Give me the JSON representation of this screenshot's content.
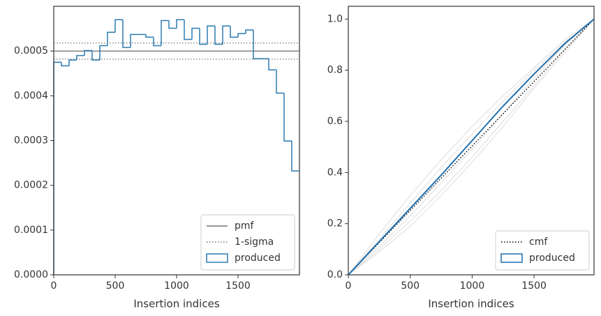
{
  "chart_data": [
    {
      "type": "histogram",
      "xlabel": "Insertion indices",
      "bins": [
        0,
        62.5,
        125,
        187.5,
        250,
        312.5,
        375,
        437.5,
        500,
        562.5,
        625,
        687.5,
        750,
        812.5,
        875,
        937.5,
        1000,
        1062.5,
        1125,
        1187.5,
        1250,
        1312.5,
        1375,
        1437.5,
        1500,
        1562.5,
        1625,
        1687.5,
        1750,
        1812.5,
        1875,
        1937.5,
        2000
      ],
      "series": [
        {
          "name": "produced",
          "color": "#2b7bb0",
          "legend_handle": "patch",
          "values": [
            0.000475,
            0.000467,
            0.00048,
            0.00049,
            0.000501,
            0.00048,
            0.000512,
            0.000542,
            0.00057,
            0.000508,
            0.000537,
            0.000537,
            0.000531,
            0.000512,
            0.000568,
            0.000551,
            0.00057,
            0.000526,
            0.000551,
            0.000515,
            0.000556,
            0.000515,
            0.000556,
            0.000531,
            0.000539,
            0.000547,
            0.000483,
            0.000483,
            0.000458,
            0.000406,
            0.000299,
            0.000232
          ]
        }
      ],
      "reference_lines": [
        {
          "name": "pmf",
          "values": [
            0.0005
          ],
          "color": "#777777",
          "style": "solid"
        },
        {
          "name": "1-sigma",
          "values": [
            0.000482,
            0.000518
          ],
          "color": "#777777",
          "style": "dotted"
        }
      ],
      "xlim": [
        0,
        2000
      ],
      "xticks": [
        0,
        500,
        1000,
        1500
      ],
      "ylim": [
        0,
        0.0006
      ],
      "yticks": [
        {
          "value": 0,
          "label": "0.0000"
        },
        {
          "value": 0.0001,
          "label": "0.0001"
        },
        {
          "value": 0.0002,
          "label": "0.0002"
        },
        {
          "value": 0.0003,
          "label": "0.0003"
        },
        {
          "value": 0.0004,
          "label": "0.0004"
        },
        {
          "value": 0.0005,
          "label": "0.0005"
        }
      ],
      "legend": "lower right"
    },
    {
      "type": "line",
      "xlabel": "Insertion indices",
      "x": [
        0,
        250,
        500,
        750,
        1000,
        1250,
        1500,
        1750,
        1984
      ],
      "series": [
        {
          "color": "#dddddd",
          "values": [
            0,
            0.16,
            0.31,
            0.45,
            0.58,
            0.7,
            0.81,
            0.92,
            1
          ]
        },
        {
          "color": "#dddddd",
          "values": [
            0,
            0.1,
            0.21,
            0.33,
            0.46,
            0.6,
            0.74,
            0.88,
            1
          ]
        },
        {
          "color": "#dddddd",
          "values": [
            0,
            0.14,
            0.28,
            0.42,
            0.55,
            0.68,
            0.8,
            0.91,
            1
          ]
        },
        {
          "color": "#dddddd",
          "values": [
            0,
            0.11,
            0.23,
            0.36,
            0.49,
            0.63,
            0.77,
            0.9,
            1
          ]
        },
        {
          "color": "#dddddd",
          "values": [
            0,
            0.09,
            0.19,
            0.31,
            0.44,
            0.58,
            0.73,
            0.87,
            1
          ]
        },
        {
          "name": "cmf",
          "color": "#000000",
          "style": "dotted",
          "values": [
            0,
            0.126,
            0.252,
            0.378,
            0.504,
            0.63,
            0.756,
            0.882,
            1
          ]
        },
        {
          "name": "produced",
          "color": "#1f6fae",
          "legend_handle": "patch",
          "values": [
            0,
            0.13,
            0.26,
            0.39,
            0.525,
            0.66,
            0.785,
            0.905,
            1
          ]
        }
      ],
      "xlim": [
        0,
        1984
      ],
      "xticks": [
        0,
        500,
        1000,
        1500
      ],
      "ylim": [
        0,
        1.05
      ],
      "yticks": [
        {
          "value": 0,
          "label": "0.0"
        },
        0.2,
        0.4,
        0.6,
        0.8,
        {
          "value": 1,
          "label": "1.0"
        }
      ],
      "legend": "lower right"
    }
  ]
}
